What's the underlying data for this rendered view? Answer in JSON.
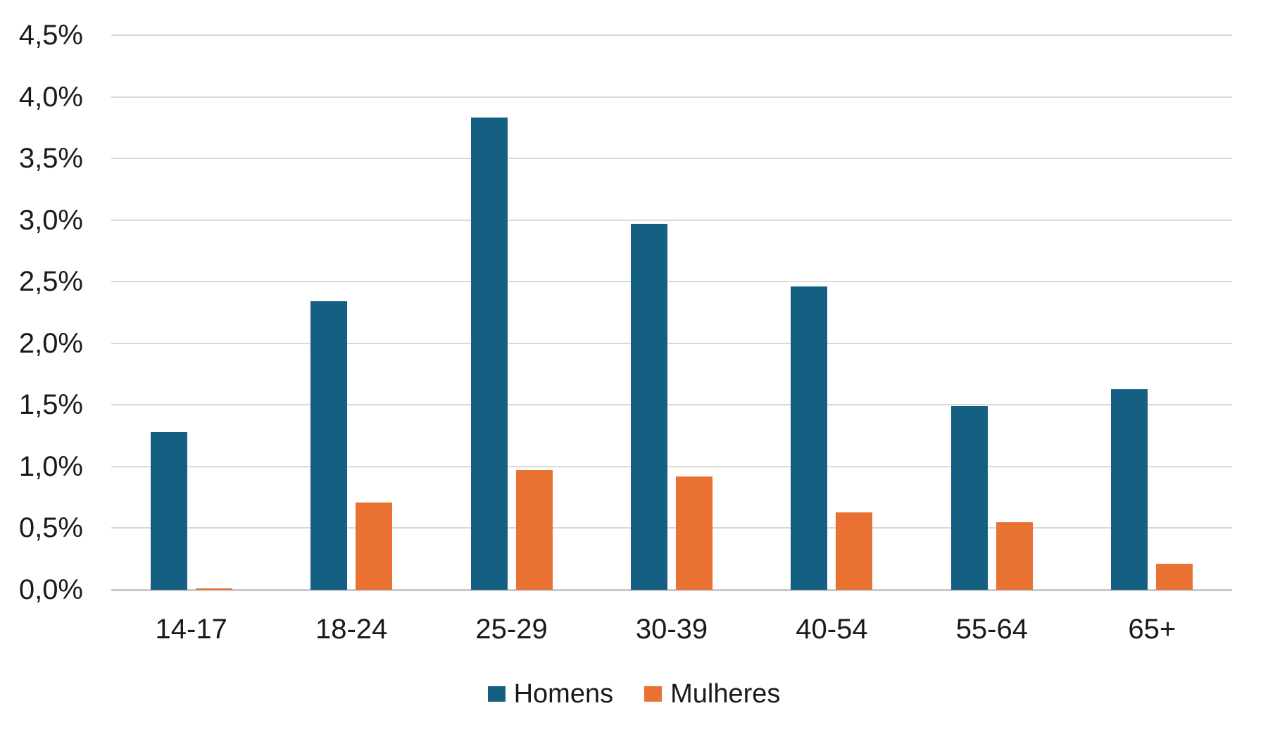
{
  "chart_data": {
    "type": "bar",
    "title": "",
    "categories": [
      "14-17",
      "18-24",
      "25-29",
      "30-39",
      "40-54",
      "55-64",
      "65+"
    ],
    "series": [
      {
        "name": "Homens",
        "color": "#156082",
        "values": [
          1.28,
          2.34,
          3.83,
          2.97,
          2.46,
          1.49,
          1.63
        ]
      },
      {
        "name": "Mulheres",
        "color": "#E97132",
        "values": [
          0.01,
          0.71,
          0.97,
          0.92,
          0.63,
          0.55,
          0.21
        ]
      }
    ],
    "y_axis": {
      "min": 0,
      "max": 4.5,
      "step": 0.5,
      "tick_labels": [
        "0,0%",
        "0,5%",
        "1,0%",
        "1,5%",
        "2,0%",
        "2,5%",
        "3,0%",
        "3,5%",
        "4,0%",
        "4,5%"
      ]
    },
    "x_axis": {
      "tick_labels": [
        "14-17",
        "18-24",
        "25-29",
        "30-39",
        "40-54",
        "55-64",
        "65+"
      ]
    },
    "legend": {
      "position": "bottom",
      "entries": [
        "Homens",
        "Mulheres"
      ]
    },
    "grid": true
  },
  "colors": {
    "homens": "#156082",
    "mulheres": "#E97132",
    "gridline": "#d9d9d9",
    "axis_line": "#c9c9c9",
    "text": "#1a1a1a",
    "background": "#ffffff"
  }
}
